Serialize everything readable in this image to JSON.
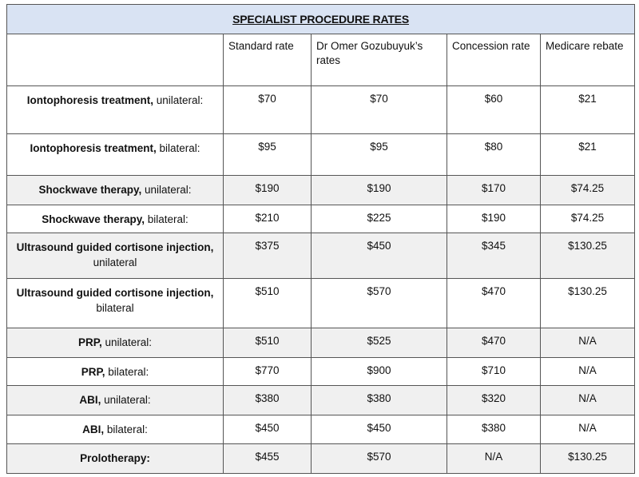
{
  "title": "SPECIALIST PROCEDURE RATES",
  "headers": [
    "",
    "Standard rate",
    "Dr Omer Gozubuyuk’s rates",
    "Concession rate",
    "Medicare rebate"
  ],
  "rows": [
    {
      "name": "Iontophoresis treatment,",
      "detail": " unilateral:",
      "standard": "$70",
      "dr": "$70",
      "concession": "$60",
      "medicare": "$21"
    },
    {
      "name": "Iontophoresis treatment,",
      "detail": " bilateral:",
      "standard": "$95",
      "dr": "$95",
      "concession": "$80",
      "medicare": "$21"
    },
    {
      "name": "Shockwave therapy,",
      "detail": " unilateral:",
      "standard": "$190",
      "dr": "$190",
      "concession": "$170",
      "medicare": "$74.25"
    },
    {
      "name": "Shockwave therapy,",
      "detail": " bilateral:",
      "standard": "$210",
      "dr": "$225",
      "concession": "$190",
      "medicare": "$74.25"
    },
    {
      "name": "Ultrasound guided cortisone injection,",
      "detail": "unilateral",
      "standard": "$375",
      "dr": "$450",
      "concession": "$345",
      "medicare": "$130.25"
    },
    {
      "name": "Ultrasound guided cortisone injection,",
      "detail": "bilateral",
      "standard": "$510",
      "dr": "$570",
      "concession": "$470",
      "medicare": "$130.25"
    },
    {
      "name": "PRP,",
      "detail": " unilateral:",
      "standard": "$510",
      "dr": "$525",
      "concession": "$470",
      "medicare": "N/A"
    },
    {
      "name": "PRP,",
      "detail": " bilateral:",
      "standard": "$770",
      "dr": "$900",
      "concession": "$710",
      "medicare": "N/A"
    },
    {
      "name": "ABI,",
      "detail": " unilateral:",
      "standard": "$380",
      "dr": "$380",
      "concession": "$320",
      "medicare": "N/A"
    },
    {
      "name": "ABI,",
      "detail": " bilateral:",
      "standard": "$450",
      "dr": "$450",
      "concession": "$380",
      "medicare": "N/A"
    },
    {
      "name": "Prolotherapy:",
      "detail": "",
      "standard": "$455",
      "dr": "$570",
      "concession": "N/A",
      "medicare": "$130.25"
    }
  ]
}
